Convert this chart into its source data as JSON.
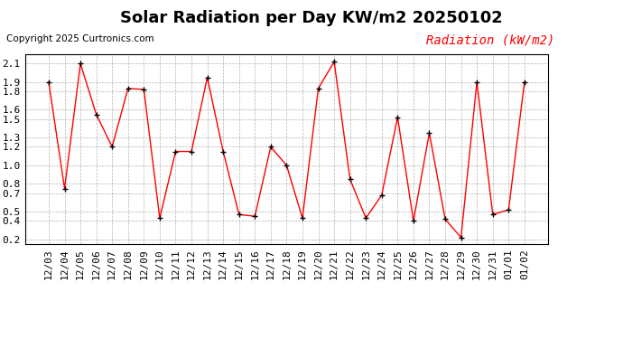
{
  "title": "Solar Radiation per Day KW/m2 20250102",
  "copyright": "Copyright 2025 Curtronics.com",
  "legend_label": "Radiation (kW/m2)",
  "dates": [
    "12/03",
    "12/04",
    "12/05",
    "12/06",
    "12/07",
    "12/08",
    "12/09",
    "12/10",
    "12/11",
    "12/12",
    "12/13",
    "12/14",
    "12/15",
    "12/16",
    "12/17",
    "12/18",
    "12/19",
    "12/20",
    "12/21",
    "12/22",
    "12/23",
    "12/24",
    "12/25",
    "12/26",
    "12/27",
    "12/28",
    "12/29",
    "12/30",
    "12/31",
    "01/01",
    "01/02"
  ],
  "values": [
    1.9,
    0.75,
    2.1,
    1.55,
    1.2,
    1.83,
    1.82,
    0.43,
    1.15,
    1.15,
    1.95,
    1.15,
    0.47,
    0.45,
    1.2,
    1.0,
    0.43,
    1.83,
    2.12,
    0.85,
    0.43,
    0.68,
    1.52,
    0.4,
    1.35,
    0.42,
    0.22,
    1.9,
    0.47,
    0.52,
    1.9
  ],
  "line_color": "red",
  "marker_color": "black",
  "background_color": "#ffffff",
  "grid_color": "#aaaaaa",
  "ylim": [
    0.15,
    2.2
  ],
  "ytick_positions": [
    0.2,
    0.4,
    0.5,
    0.7,
    0.8,
    1.0,
    1.2,
    1.3,
    1.5,
    1.6,
    1.8,
    1.9,
    2.1
  ],
  "ytick_labels": [
    "0.2",
    "0.4",
    "0.5",
    "0.7",
    "0.8",
    "1.0",
    "1.2",
    "1.3",
    "1.5",
    "1.6",
    "1.8",
    "1.9",
    "2.1"
  ],
  "title_fontsize": 13,
  "copyright_fontsize": 7.5,
  "legend_fontsize": 10,
  "tick_fontsize": 8
}
